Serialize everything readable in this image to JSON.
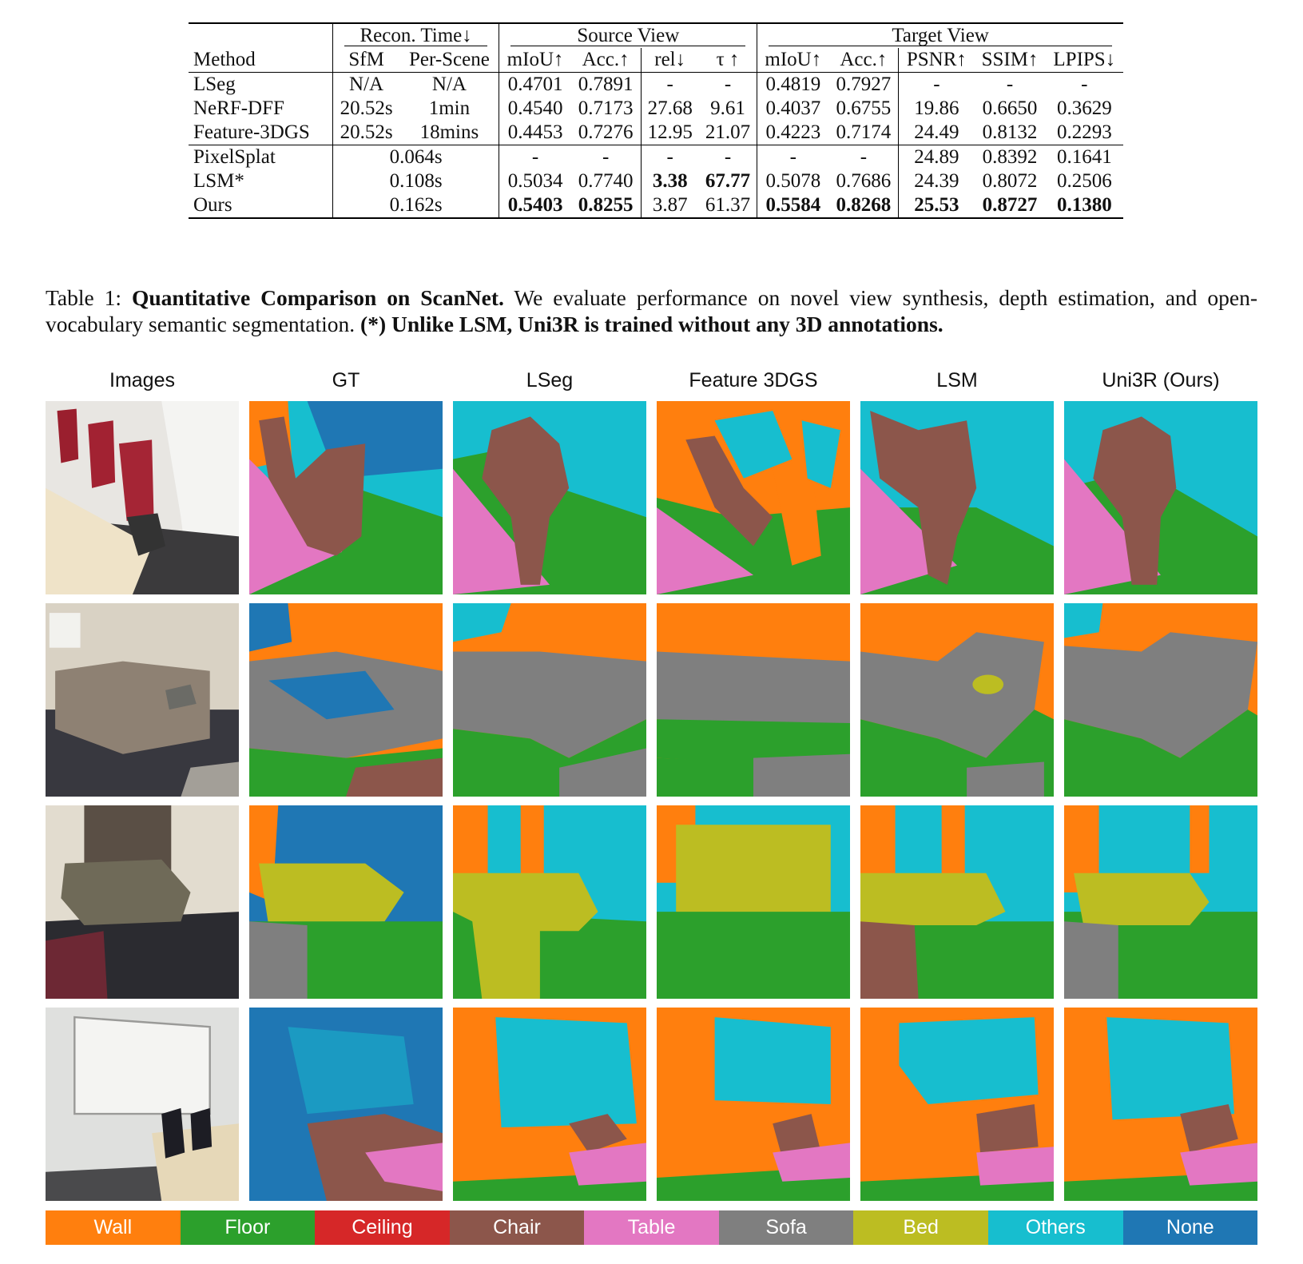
{
  "table": {
    "header": {
      "method": "Method",
      "recon_time": "Recon. Time↓",
      "source_view": "Source View",
      "target_view": "Target View",
      "sfm": "SfM",
      "per_scene": "Per-Scene",
      "miou": "mIoU↑",
      "acc": "Acc.↑",
      "rel": "rel↓",
      "tau": "τ ↑",
      "psnr": "PSNR↑",
      "ssim": "SSIM↑",
      "lpips": "LPIPS↓"
    },
    "rows_a": [
      {
        "method": "LSeg",
        "sfm": "N/A",
        "per_scene": "N/A",
        "src_miou": "0.4701",
        "src_acc": "0.7891",
        "rel": "-",
        "tau": "-",
        "tgt_miou": "0.4819",
        "tgt_acc": "0.7927",
        "psnr": "-",
        "ssim": "-",
        "lpips": "-"
      },
      {
        "method": "NeRF-DFF",
        "sfm": "20.52s",
        "per_scene": "1min",
        "src_miou": "0.4540",
        "src_acc": "0.7173",
        "rel": "27.68",
        "tau": "9.61",
        "tgt_miou": "0.4037",
        "tgt_acc": "0.6755",
        "psnr": "19.86",
        "ssim": "0.6650",
        "lpips": "0.3629"
      },
      {
        "method": "Feature-3DGS",
        "sfm": "20.52s",
        "per_scene": "18mins",
        "src_miou": "0.4453",
        "src_acc": "0.7276",
        "rel": "12.95",
        "tau": "21.07",
        "tgt_miou": "0.4223",
        "tgt_acc": "0.7174",
        "psnr": "24.49",
        "ssim": "0.8132",
        "lpips": "0.2293"
      }
    ],
    "rows_b": [
      {
        "method": "PixelSplat",
        "time": "0.064s",
        "src_miou": "-",
        "src_acc": "-",
        "rel": "-",
        "tau": "-",
        "tgt_miou": "-",
        "tgt_acc": "-",
        "psnr": "24.89",
        "ssim": "0.8392",
        "lpips": "0.1641"
      },
      {
        "method": "LSM*",
        "time": "0.108s",
        "src_miou": "0.5034",
        "src_acc": "0.7740",
        "rel": "3.38",
        "tau": "67.77",
        "tgt_miou": "0.5078",
        "tgt_acc": "0.7686",
        "psnr": "24.39",
        "ssim": "0.8072",
        "lpips": "0.2506"
      },
      {
        "method": "Ours",
        "time": "0.162s",
        "src_miou": "0.5403",
        "src_acc": "0.8255",
        "rel": "3.87",
        "tau": "61.37",
        "tgt_miou": "0.5584",
        "tgt_acc": "0.8268",
        "psnr": "25.53",
        "ssim": "0.8727",
        "lpips": "0.1380"
      }
    ]
  },
  "caption": {
    "label": "Table 1: ",
    "title": "Quantitative Comparison on ScanNet.",
    "body": " We evaluate performance on novel view synthesis, depth estimation, and open-vocabulary semantic segmentation. ",
    "note": "(*) Unlike LSM, Uni3R is trained without any 3D annotations."
  },
  "figure": {
    "columns": [
      "Images",
      "GT",
      "LSeg",
      "Feature 3DGS",
      "LSM",
      "Uni3R (Ours)"
    ]
  },
  "legend": [
    {
      "label": "Wall",
      "color": "#ff7f0e"
    },
    {
      "label": "Floor",
      "color": "#2ca02c"
    },
    {
      "label": "Ceiling",
      "color": "#d62728"
    },
    {
      "label": "Chair",
      "color": "#8c564b"
    },
    {
      "label": "Table",
      "color": "#e377c2"
    },
    {
      "label": "Sofa",
      "color": "#7f7f7f"
    },
    {
      "label": "Bed",
      "color": "#bcbd22"
    },
    {
      "label": "Others",
      "color": "#17becf"
    },
    {
      "label": "None",
      "color": "#1f77b4"
    }
  ]
}
